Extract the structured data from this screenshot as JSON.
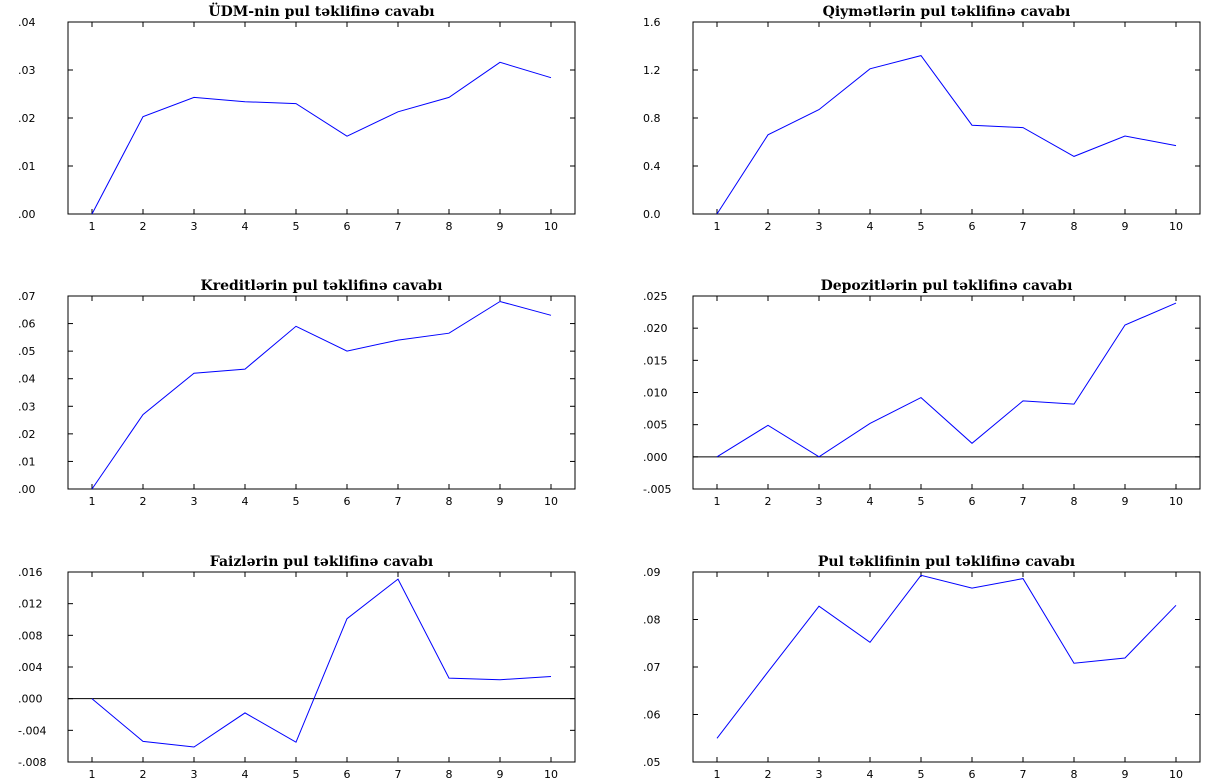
{
  "colors": {
    "series": "#0000ff",
    "axis": "#000000",
    "background": "#ffffff"
  },
  "chart_data": [
    {
      "type": "line",
      "title": "ÜDM-nin pul təklifinə cavabı",
      "x": [
        1,
        2,
        3,
        4,
        5,
        6,
        7,
        8,
        9,
        10
      ],
      "xtick_labels": [
        "1",
        "2",
        "3",
        "4",
        "5",
        "6",
        "7",
        "8",
        "9",
        "10"
      ],
      "ylim": [
        0,
        0.04
      ],
      "yticks": [
        0,
        0.01,
        0.02,
        0.03,
        0.04
      ],
      "ytick_labels": [
        ".00",
        ".01",
        ".02",
        ".03",
        ".04"
      ],
      "zero_line": false,
      "series": [
        {
          "values": [
            0.0,
            0.0203,
            0.0243,
            0.0234,
            0.023,
            0.0162,
            0.0213,
            0.0243,
            0.0316,
            0.0284
          ]
        }
      ]
    },
    {
      "type": "line",
      "title": "Qiymətlərin pul təklifinə cavabı",
      "x": [
        1,
        2,
        3,
        4,
        5,
        6,
        7,
        8,
        9,
        10
      ],
      "xtick_labels": [
        "1",
        "2",
        "3",
        "4",
        "5",
        "6",
        "7",
        "8",
        "9",
        "10"
      ],
      "ylim": [
        0,
        1.6
      ],
      "yticks": [
        0,
        0.4,
        0.8,
        1.2,
        1.6
      ],
      "ytick_labels": [
        "0.0",
        "0.4",
        "0.8",
        "1.2",
        "1.6"
      ],
      "zero_line": false,
      "series": [
        {
          "values": [
            0.0,
            0.66,
            0.87,
            1.21,
            1.32,
            0.74,
            0.72,
            0.48,
            0.65,
            0.57
          ]
        }
      ]
    },
    {
      "type": "line",
      "title": "Kreditlərin pul təklifinə cavabı",
      "x": [
        1,
        2,
        3,
        4,
        5,
        6,
        7,
        8,
        9,
        10
      ],
      "xtick_labels": [
        "1",
        "2",
        "3",
        "4",
        "5",
        "6",
        "7",
        "8",
        "9",
        "10"
      ],
      "ylim": [
        0,
        0.07
      ],
      "yticks": [
        0,
        0.01,
        0.02,
        0.03,
        0.04,
        0.05,
        0.06,
        0.07
      ],
      "ytick_labels": [
        ".00",
        ".01",
        ".02",
        ".03",
        ".04",
        ".05",
        ".06",
        ".07"
      ],
      "zero_line": false,
      "series": [
        {
          "values": [
            0.0,
            0.027,
            0.042,
            0.0435,
            0.059,
            0.05,
            0.054,
            0.0565,
            0.068,
            0.063
          ]
        }
      ]
    },
    {
      "type": "line",
      "title": "Depozitlərin pul təklifinə cavabı",
      "x": [
        1,
        2,
        3,
        4,
        5,
        6,
        7,
        8,
        9,
        10
      ],
      "xtick_labels": [
        "1",
        "2",
        "3",
        "4",
        "5",
        "6",
        "7",
        "8",
        "9",
        "10"
      ],
      "ylim": [
        -0.005,
        0.025
      ],
      "yticks": [
        -0.005,
        0.0,
        0.005,
        0.01,
        0.015,
        0.02,
        0.025
      ],
      "ytick_labels": [
        "-.005",
        ".000",
        ".005",
        ".010",
        ".015",
        ".020",
        ".025"
      ],
      "zero_line": true,
      "series": [
        {
          "values": [
            0.0,
            0.0049,
            0.0,
            0.0052,
            0.0092,
            0.0021,
            0.0087,
            0.0082,
            0.0205,
            0.0239
          ]
        }
      ]
    },
    {
      "type": "line",
      "title": "Faizlərin pul təklifinə cavabı",
      "x": [
        1,
        2,
        3,
        4,
        5,
        6,
        7,
        8,
        9,
        10
      ],
      "xtick_labels": [
        "1",
        "2",
        "3",
        "4",
        "5",
        "6",
        "7",
        "8",
        "9",
        "10"
      ],
      "ylim": [
        -0.008,
        0.016
      ],
      "yticks": [
        -0.008,
        -0.004,
        0.0,
        0.004,
        0.008,
        0.012,
        0.016
      ],
      "ytick_labels": [
        "-.008",
        "-.004",
        ".000",
        ".004",
        ".008",
        ".012",
        ".016"
      ],
      "zero_line": true,
      "series": [
        {
          "values": [
            0.0,
            -0.0054,
            -0.0061,
            -0.0018,
            -0.0055,
            0.0101,
            0.0151,
            0.0026,
            0.0024,
            0.0028
          ]
        }
      ]
    },
    {
      "type": "line",
      "title": "Pul təklifinin pul təklifinə cavabı",
      "x": [
        1,
        2,
        3,
        4,
        5,
        6,
        7,
        8,
        9,
        10
      ],
      "xtick_labels": [
        "1",
        "2",
        "3",
        "4",
        "5",
        "6",
        "7",
        "8",
        "9",
        "10"
      ],
      "ylim": [
        0.05,
        0.09
      ],
      "yticks": [
        0.05,
        0.06,
        0.07,
        0.08,
        0.09
      ],
      "ytick_labels": [
        ".05",
        ".06",
        ".07",
        ".08",
        ".09"
      ],
      "zero_line": false,
      "series": [
        {
          "values": [
            0.055,
            0.069,
            0.0828,
            0.0752,
            0.0893,
            0.0866,
            0.0886,
            0.0708,
            0.0719,
            0.083
          ]
        }
      ]
    }
  ]
}
